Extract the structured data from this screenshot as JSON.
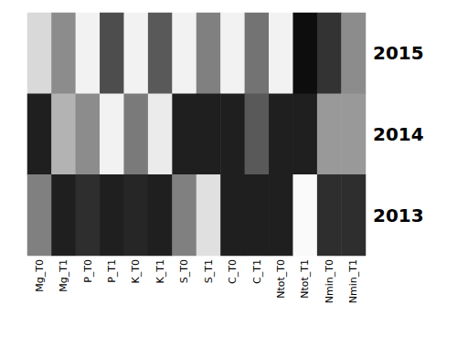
{
  "chart_data": {
    "type": "heatmap",
    "categories": [
      "Mg_T0",
      "Mg_T1",
      "P_T0",
      "P_T1",
      "K_T0",
      "K_T1",
      "S_T0",
      "S_T1",
      "C_T0",
      "C_T1",
      "Ntot_T0",
      "Ntot_T1",
      "Nmin_T0",
      "Nmin_T1"
    ],
    "series": [
      {
        "name": "2015",
        "values": [
          0.15,
          0.45,
          0.05,
          0.7,
          0.05,
          0.65,
          0.05,
          0.5,
          0.05,
          0.55,
          0.05,
          0.95,
          0.8,
          0.45
        ]
      },
      {
        "name": "2014",
        "values": [
          0.88,
          0.3,
          0.45,
          0.05,
          0.52,
          0.08,
          0.88,
          0.88,
          0.88,
          0.65,
          0.88,
          0.88,
          0.4,
          0.4
        ]
      },
      {
        "name": "2013",
        "values": [
          0.5,
          0.88,
          0.82,
          0.88,
          0.85,
          0.88,
          0.5,
          0.12,
          0.88,
          0.88,
          0.88,
          0.02,
          0.82,
          0.82
        ]
      }
    ],
    "color_range": [
      0,
      1
    ],
    "colors": [
      "#ffffff",
      "#000000"
    ],
    "grid": false
  }
}
